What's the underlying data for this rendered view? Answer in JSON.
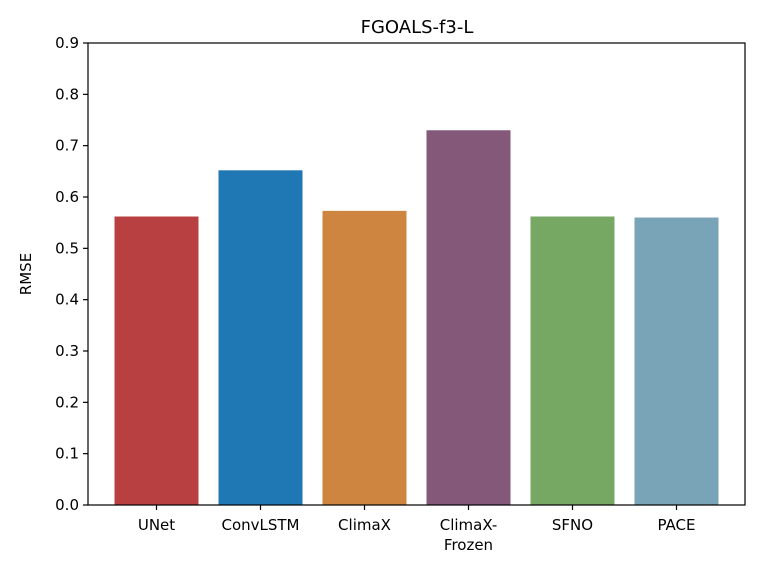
{
  "chart_data": {
    "type": "bar",
    "title": "FGOALS-f3-L",
    "xlabel": "",
    "ylabel": "RMSE",
    "categories": [
      [
        "UNet"
      ],
      [
        "ConvLSTM"
      ],
      [
        "ClimaX"
      ],
      [
        "ClimaX-",
        "Frozen"
      ],
      [
        "SFNO"
      ],
      [
        "PACE"
      ]
    ],
    "values": [
      0.562,
      0.652,
      0.573,
      0.73,
      0.562,
      0.56
    ],
    "colors": [
      "#b94040",
      "#1f77b4",
      "#cd853f",
      "#845878",
      "#76a763",
      "#79a3b7"
    ],
    "ylim": [
      0,
      0.9
    ],
    "yticks": [
      "0.0",
      "0.1",
      "0.2",
      "0.3",
      "0.4",
      "0.5",
      "0.6",
      "0.7",
      "0.8",
      "0.9"
    ],
    "grid": false,
    "legend": "none"
  }
}
